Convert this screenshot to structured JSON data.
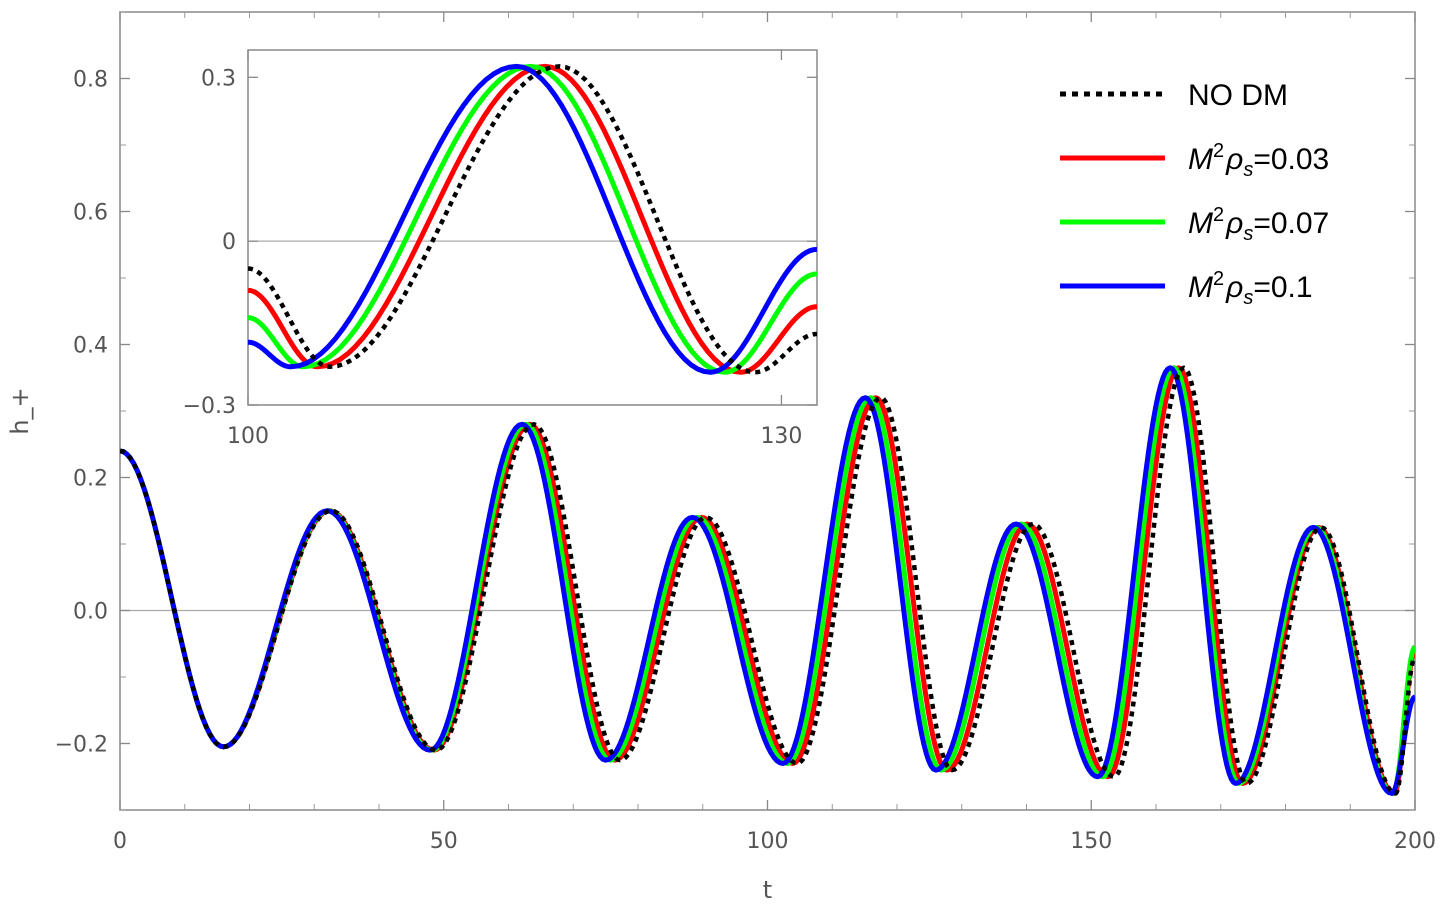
{
  "chart_data": [
    {
      "type": "line",
      "xlabel": "t",
      "ylabel": "h_+",
      "xlim": [
        0,
        200
      ],
      "ylim": [
        -0.3,
        0.9
      ],
      "xticks": [
        0,
        50,
        100,
        150,
        200
      ],
      "xtick_labels": [
        "0",
        "50",
        "100",
        "150",
        "200"
      ],
      "yticks": [
        -0.2,
        0.0,
        0.2,
        0.4,
        0.6,
        0.8
      ],
      "ytick_labels": [
        "−0.2",
        "0.0",
        "0.2",
        "0.4",
        "0.6",
        "0.8"
      ],
      "grid": false,
      "legend_position": "top-right",
      "series": [
        {
          "name": "NO DM",
          "color": "#000000",
          "style": "dotted",
          "x": [
            0,
            16,
            32.6,
            48.8,
            63.9,
            77.2,
            90.5,
            104.6,
            117.5,
            128.5,
            141.0,
            153.5,
            164.3,
            174.0,
            185.5,
            197.0,
            200
          ],
          "y": [
            0.24,
            -0.205,
            0.15,
            -0.21,
            0.28,
            -0.225,
            0.14,
            -0.23,
            0.32,
            -0.24,
            0.13,
            -0.25,
            0.365,
            -0.26,
            0.125,
            -0.275,
            -0.07
          ]
        },
        {
          "name": "M²ρs=0.03",
          "color": "#ff0000",
          "style": "solid",
          "x": [
            0,
            16,
            32.4,
            48.5,
            63.3,
            76.4,
            89.8,
            103.9,
            116.7,
            127.7,
            140.1,
            152.6,
            163.5,
            173.4,
            185.1,
            196.8,
            200
          ],
          "y": [
            0.24,
            -0.205,
            0.15,
            -0.21,
            0.28,
            -0.225,
            0.14,
            -0.23,
            0.32,
            -0.24,
            0.13,
            -0.25,
            0.365,
            -0.26,
            0.125,
            -0.275,
            -0.06
          ]
        },
        {
          "name": "M²ρs=0.07",
          "color": "#00ff00",
          "style": "solid",
          "x": [
            0,
            16,
            32.2,
            48.2,
            62.7,
            75.7,
            89.1,
            103.1,
            115.9,
            126.8,
            139.2,
            151.8,
            162.8,
            172.8,
            184.7,
            196.6,
            200
          ],
          "y": [
            0.24,
            -0.205,
            0.15,
            -0.21,
            0.28,
            -0.225,
            0.14,
            -0.23,
            0.32,
            -0.24,
            0.13,
            -0.25,
            0.365,
            -0.26,
            0.125,
            -0.275,
            -0.055
          ]
        },
        {
          "name": "M²ρs=0.1",
          "color": "#0000ff",
          "style": "solid",
          "x": [
            0,
            16,
            32.0,
            47.9,
            62.1,
            75.0,
            88.4,
            102.4,
            115.1,
            126.0,
            138.4,
            151.0,
            162.2,
            172.3,
            184.3,
            196.4,
            200
          ],
          "y": [
            0.24,
            -0.205,
            0.15,
            -0.21,
            0.28,
            -0.225,
            0.14,
            -0.23,
            0.32,
            -0.24,
            0.13,
            -0.25,
            0.365,
            -0.26,
            0.125,
            -0.275,
            -0.13
          ]
        }
      ]
    },
    {
      "type": "line",
      "xlim": [
        100,
        132
      ],
      "ylim": [
        -0.3,
        0.35
      ],
      "xticks": [
        100,
        130
      ],
      "xtick_labels": [
        "100",
        "130"
      ],
      "yticks": [
        -0.3,
        0,
        0.3
      ],
      "ytick_labels": [
        "−0.3",
        "0",
        "0.3"
      ],
      "series": [
        {
          "name": "NO DM",
          "color": "#000000",
          "style": "dotted",
          "x": [
            100,
            104.6,
            117.5,
            128.5,
            132
          ],
          "y": [
            -0.05,
            -0.23,
            0.32,
            -0.24,
            -0.17
          ]
        },
        {
          "name": "M²ρs=0.03",
          "color": "#ff0000",
          "style": "solid",
          "x": [
            100,
            103.9,
            116.7,
            127.7,
            132
          ],
          "y": [
            -0.09,
            -0.23,
            0.32,
            -0.24,
            -0.12
          ]
        },
        {
          "name": "M²ρs=0.07",
          "color": "#00ff00",
          "style": "solid",
          "x": [
            100,
            103.1,
            115.9,
            126.8,
            132
          ],
          "y": [
            -0.14,
            -0.23,
            0.32,
            -0.24,
            -0.06
          ]
        },
        {
          "name": "M²ρs=0.1",
          "color": "#0000ff",
          "style": "solid",
          "x": [
            100,
            102.4,
            115.1,
            126.0,
            132
          ],
          "y": [
            -0.185,
            -0.23,
            0.32,
            -0.24,
            -0.015
          ]
        }
      ]
    }
  ],
  "legend": [
    {
      "label_prefix": "NO DM",
      "math": false,
      "value": "",
      "color": "#000000",
      "style": "dotted"
    },
    {
      "label_prefix": "M",
      "sup": "2",
      "rho": "ρ",
      "sub": "s",
      "value": "=0.03",
      "math": true,
      "color": "#ff0000",
      "style": "solid"
    },
    {
      "label_prefix": "M",
      "sup": "2",
      "rho": "ρ",
      "sub": "s",
      "value": "=0.07",
      "math": true,
      "color": "#00ff00",
      "style": "solid"
    },
    {
      "label_prefix": "M",
      "sup": "2",
      "rho": "ρ",
      "sub": "s",
      "value": "=0.1",
      "math": true,
      "color": "#0000ff",
      "style": "solid"
    }
  ]
}
